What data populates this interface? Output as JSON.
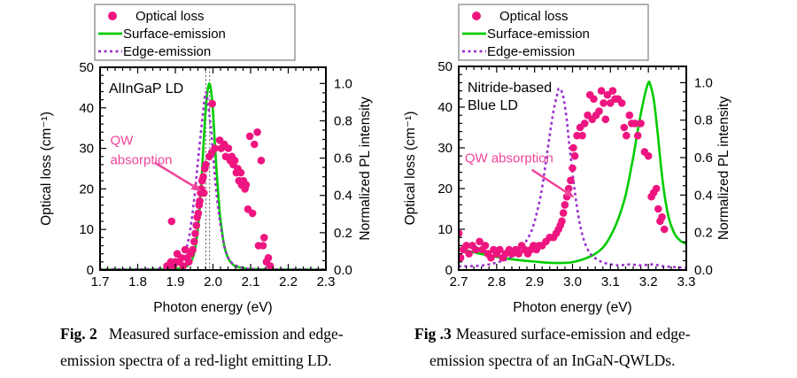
{
  "colors": {
    "optical_loss_pink": "#EE1580",
    "surface_emission_green": "#00CC00",
    "edge_emission_purple": "#9B30CC",
    "annotation_pink": "#F0459A",
    "axis_black": "#000000",
    "legend_border_gray": "#999999",
    "ref_line_gray": "#555555",
    "background": "#FFFFFF"
  },
  "legend_items": [
    {
      "label": "Optical loss",
      "marker": "dot"
    },
    {
      "label": "Surface-emission",
      "marker": "solid-line"
    },
    {
      "label": "Edge-emission",
      "marker": "dashed-line"
    }
  ],
  "chart_data": [
    {
      "type": "scatter+line",
      "inner_title": [
        "AlInGaP LD"
      ],
      "xlabel": "Photon energy (eV)",
      "ylabel_left": "Optical loss (cm⁻¹)",
      "ylabel_right": "Normalized PL intensity",
      "xlim": [
        1.7,
        2.3
      ],
      "xtick_values": [
        1.7,
        1.8,
        1.9,
        2.0,
        2.1,
        2.2,
        2.3
      ],
      "xtick_labels": [
        "1.7",
        "1.8",
        "1.9",
        "2.0",
        "2.1",
        "2.2",
        "2.3"
      ],
      "x_minor_step": 0.02,
      "ylim_left": [
        0,
        50
      ],
      "ytick_left_values": [
        0,
        10,
        20,
        30,
        40,
        50
      ],
      "ytick_left_labels": [
        "0",
        "10",
        "20",
        "30",
        "40",
        "50"
      ],
      "y_left_minor_step": 2,
      "ytick_right_values": [
        0,
        0.2,
        0.4,
        0.6,
        0.8,
        1.0
      ],
      "ytick_right_labels": [
        "0.0",
        "0.2",
        "0.4",
        "0.6",
        "0.8",
        "1.0"
      ],
      "y_right_minor_step": 0.05,
      "right_axis_top_value": 46,
      "ref_lines_x": [
        1.981,
        1.991
      ],
      "annotation": {
        "text_lines": [
          "QW",
          "absorption"
        ],
        "text_pos": [
          1.727,
          33.5
        ],
        "arrow_from": [
          1.845,
          26.5
        ],
        "arrow_to": [
          1.969,
          19.5
        ]
      },
      "series": {
        "optical_loss_scatter": [
          [
            1.878,
            1
          ],
          [
            1.888,
            2
          ],
          [
            1.89,
            12
          ],
          [
            1.895,
            1
          ],
          [
            1.9,
            2
          ],
          [
            1.905,
            4
          ],
          [
            1.91,
            2
          ],
          [
            1.916,
            3
          ],
          [
            1.921,
            1
          ],
          [
            1.926,
            5
          ],
          [
            1.931,
            3
          ],
          [
            1.936,
            2
          ],
          [
            1.941,
            4
          ],
          [
            1.946,
            5
          ],
          [
            1.95,
            7
          ],
          [
            1.953,
            9
          ],
          [
            1.956,
            11
          ],
          [
            1.958,
            13
          ],
          [
            1.961,
            14
          ],
          [
            1.963,
            16
          ],
          [
            1.965,
            17
          ],
          [
            1.967,
            19
          ],
          [
            1.969,
            20
          ],
          [
            1.971,
            22
          ],
          [
            1.974,
            23
          ],
          [
            1.976,
            19
          ],
          [
            1.978,
            25
          ],
          [
            1.981,
            26
          ],
          [
            1.998,
            41
          ],
          [
            1.99,
            28
          ],
          [
            1.997,
            29
          ],
          [
            2.005,
            30
          ],
          [
            2.018,
            32
          ],
          [
            2.022,
            30
          ],
          [
            2.03,
            31
          ],
          [
            2.034,
            28
          ],
          [
            2.041,
            30
          ],
          [
            2.046,
            27
          ],
          [
            2.05,
            28
          ],
          [
            2.054,
            26
          ],
          [
            2.058,
            27
          ],
          [
            2.062,
            24
          ],
          [
            2.066,
            25
          ],
          [
            2.069,
            22
          ],
          [
            2.074,
            24
          ],
          [
            2.076,
            21
          ],
          [
            2.081,
            22
          ],
          [
            2.085,
            20
          ],
          [
            2.088,
            21
          ],
          [
            2.093,
            15
          ],
          [
            2.098,
            33
          ],
          [
            2.105,
            14
          ],
          [
            2.11,
            31
          ],
          [
            2.118,
            34
          ],
          [
            2.121,
            6
          ],
          [
            2.128,
            27
          ],
          [
            2.133,
            6
          ],
          [
            2.136,
            8
          ],
          [
            2.142,
            2
          ],
          [
            2.147,
            3
          ],
          [
            2.152,
            1
          ]
        ],
        "surface_emission": [
          [
            1.7,
            0.002
          ],
          [
            1.8,
            0.002
          ],
          [
            1.85,
            0.003
          ],
          [
            1.9,
            0.006
          ],
          [
            1.92,
            0.012
          ],
          [
            1.93,
            0.02
          ],
          [
            1.94,
            0.04
          ],
          [
            1.95,
            0.09
          ],
          [
            1.96,
            0.22
          ],
          [
            1.965,
            0.34
          ],
          [
            1.97,
            0.5
          ],
          [
            1.975,
            0.68
          ],
          [
            1.98,
            0.84
          ],
          [
            1.985,
            0.95
          ],
          [
            1.99,
            1.0
          ],
          [
            1.995,
            0.96
          ],
          [
            2.0,
            0.85
          ],
          [
            2.005,
            0.68
          ],
          [
            2.01,
            0.52
          ],
          [
            2.015,
            0.38
          ],
          [
            2.02,
            0.27
          ],
          [
            2.03,
            0.13
          ],
          [
            2.04,
            0.065
          ],
          [
            2.05,
            0.035
          ],
          [
            2.06,
            0.02
          ],
          [
            2.08,
            0.01
          ],
          [
            2.1,
            0.005
          ],
          [
            2.15,
            0.003
          ],
          [
            2.2,
            0.002
          ],
          [
            2.3,
            0.002
          ]
        ],
        "edge_emission": [
          [
            1.7,
            0.003
          ],
          [
            1.8,
            0.004
          ],
          [
            1.85,
            0.006
          ],
          [
            1.88,
            0.012
          ],
          [
            1.9,
            0.025
          ],
          [
            1.91,
            0.04
          ],
          [
            1.92,
            0.07
          ],
          [
            1.93,
            0.12
          ],
          [
            1.94,
            0.22
          ],
          [
            1.95,
            0.38
          ],
          [
            1.96,
            0.58
          ],
          [
            1.97,
            0.78
          ],
          [
            1.975,
            0.87
          ],
          [
            1.98,
            0.95
          ],
          [
            1.985,
            0.92
          ],
          [
            1.99,
            0.84
          ],
          [
            1.995,
            0.75
          ],
          [
            2.0,
            0.62
          ],
          [
            2.005,
            0.5
          ],
          [
            2.01,
            0.4
          ],
          [
            2.015,
            0.31
          ],
          [
            2.02,
            0.24
          ],
          [
            2.03,
            0.13
          ],
          [
            2.04,
            0.068
          ],
          [
            2.05,
            0.038
          ],
          [
            2.06,
            0.024
          ],
          [
            2.08,
            0.012
          ],
          [
            2.1,
            0.006
          ],
          [
            2.15,
            0.004
          ],
          [
            2.2,
            0.003
          ],
          [
            2.3,
            0.003
          ]
        ]
      }
    },
    {
      "type": "scatter+line",
      "inner_title": [
        "Nitride-based",
        "Blue LD"
      ],
      "xlabel": "Photon energy (eV)",
      "ylabel_left": "Optical loss (cm⁻¹)",
      "ylabel_right": "Normalized PL intensity",
      "xlim": [
        2.7,
        3.3
      ],
      "xtick_values": [
        2.7,
        2.8,
        2.9,
        3.0,
        3.1,
        3.2,
        3.3
      ],
      "xtick_labels": [
        "2.7",
        "2.8",
        "2.9",
        "3.0",
        "3.1",
        "3.2",
        "3.3"
      ],
      "x_minor_step": 0.02,
      "ylim_left": [
        0,
        50
      ],
      "ytick_left_values": [
        0,
        10,
        20,
        30,
        40,
        50
      ],
      "ytick_left_labels": [
        "0",
        "10",
        "20",
        "30",
        "40",
        "50"
      ],
      "y_left_minor_step": 2,
      "ytick_right_values": [
        0,
        0.2,
        0.4,
        0.6,
        0.8,
        1.0
      ],
      "ytick_right_labels": [
        "0.0",
        "0.2",
        "0.4",
        "0.6",
        "0.8",
        "1.0"
      ],
      "y_right_minor_step": 0.05,
      "right_axis_top_value": 46,
      "ref_lines_x": [],
      "annotation": {
        "text_lines": [
          "QW absorption"
        ],
        "text_pos": [
          2.716,
          29
        ],
        "arrow_from": [
          2.893,
          24.6
        ],
        "arrow_to": [
          3.005,
          17.8
        ]
      },
      "series": {
        "optical_loss_scatter": [
          [
            2.7,
            9
          ],
          [
            2.705,
            3
          ],
          [
            2.712,
            5
          ],
          [
            2.72,
            6
          ],
          [
            2.727,
            4
          ],
          [
            2.736,
            6
          ],
          [
            2.745,
            5
          ],
          [
            2.755,
            7
          ],
          [
            2.762,
            5
          ],
          [
            2.77,
            6
          ],
          [
            2.777,
            4
          ],
          [
            2.785,
            3
          ],
          [
            2.792,
            5
          ],
          [
            2.8,
            4
          ],
          [
            2.808,
            5
          ],
          [
            2.816,
            3
          ],
          [
            2.824,
            4
          ],
          [
            2.833,
            5
          ],
          [
            2.841,
            4
          ],
          [
            2.85,
            5
          ],
          [
            2.858,
            4
          ],
          [
            2.866,
            6
          ],
          [
            2.874,
            5
          ],
          [
            2.882,
            4
          ],
          [
            2.89,
            5
          ],
          [
            2.897,
            6
          ],
          [
            2.905,
            5
          ],
          [
            2.912,
            6
          ],
          [
            2.92,
            6
          ],
          [
            2.93,
            7
          ],
          [
            2.94,
            8
          ],
          [
            2.95,
            8
          ],
          [
            2.957,
            9
          ],
          [
            2.963,
            10
          ],
          [
            2.968,
            11
          ],
          [
            2.972,
            12
          ],
          [
            2.976,
            14
          ],
          [
            2.98,
            16
          ],
          [
            2.985,
            18
          ],
          [
            2.99,
            20
          ],
          [
            2.995,
            22
          ],
          [
            3.0,
            25
          ],
          [
            3.002,
            30
          ],
          [
            3.006,
            28
          ],
          [
            3.012,
            33
          ],
          [
            3.02,
            35
          ],
          [
            3.026,
            33
          ],
          [
            3.032,
            36
          ],
          [
            3.04,
            38
          ],
          [
            3.046,
            43
          ],
          [
            3.052,
            37
          ],
          [
            3.056,
            42
          ],
          [
            3.062,
            38
          ],
          [
            3.07,
            39
          ],
          [
            3.076,
            44
          ],
          [
            3.082,
            41
          ],
          [
            3.087,
            37
          ],
          [
            3.092,
            43
          ],
          [
            3.1,
            41
          ],
          [
            3.106,
            44
          ],
          [
            3.112,
            42
          ],
          [
            3.12,
            42
          ],
          [
            3.13,
            41
          ],
          [
            3.136,
            35
          ],
          [
            3.142,
            33
          ],
          [
            3.15,
            38
          ],
          [
            3.156,
            36
          ],
          [
            3.165,
            36
          ],
          [
            3.172,
            33
          ],
          [
            3.18,
            36
          ],
          [
            3.19,
            29
          ],
          [
            3.2,
            28
          ],
          [
            3.208,
            18
          ],
          [
            3.214,
            19
          ],
          [
            3.221,
            20
          ],
          [
            3.226,
            15
          ],
          [
            3.231,
            12
          ],
          [
            3.236,
            13
          ],
          [
            3.242,
            10
          ]
        ],
        "surface_emission": [
          [
            2.7,
            0.115
          ],
          [
            2.75,
            0.09
          ],
          [
            2.8,
            0.07
          ],
          [
            2.85,
            0.055
          ],
          [
            2.9,
            0.045
          ],
          [
            2.95,
            0.038
          ],
          [
            3.0,
            0.042
          ],
          [
            3.05,
            0.075
          ],
          [
            3.08,
            0.12
          ],
          [
            3.1,
            0.18
          ],
          [
            3.12,
            0.27
          ],
          [
            3.14,
            0.4
          ],
          [
            3.16,
            0.6
          ],
          [
            3.175,
            0.78
          ],
          [
            3.19,
            0.93
          ],
          [
            3.2,
            1.0
          ],
          [
            3.205,
            0.99
          ],
          [
            3.215,
            0.9
          ],
          [
            3.225,
            0.72
          ],
          [
            3.235,
            0.52
          ],
          [
            3.245,
            0.37
          ],
          [
            3.255,
            0.27
          ],
          [
            3.27,
            0.19
          ],
          [
            3.285,
            0.155
          ],
          [
            3.3,
            0.14
          ]
        ],
        "edge_emission": [
          [
            2.7,
            0.02
          ],
          [
            2.75,
            0.022
          ],
          [
            2.78,
            0.03
          ],
          [
            2.8,
            0.04
          ],
          [
            2.83,
            0.06
          ],
          [
            2.85,
            0.09
          ],
          [
            2.87,
            0.13
          ],
          [
            2.89,
            0.2
          ],
          [
            2.9,
            0.26
          ],
          [
            2.91,
            0.34
          ],
          [
            2.92,
            0.44
          ],
          [
            2.93,
            0.58
          ],
          [
            2.94,
            0.72
          ],
          [
            2.95,
            0.85
          ],
          [
            2.96,
            0.94
          ],
          [
            2.965,
            0.97
          ],
          [
            2.975,
            0.93
          ],
          [
            2.985,
            0.8
          ],
          [
            2.99,
            0.7
          ],
          [
            3.0,
            0.52
          ],
          [
            3.01,
            0.36
          ],
          [
            3.02,
            0.24
          ],
          [
            3.03,
            0.16
          ],
          [
            3.04,
            0.11
          ],
          [
            3.05,
            0.08
          ],
          [
            3.07,
            0.05
          ],
          [
            3.09,
            0.035
          ],
          [
            3.12,
            0.025
          ],
          [
            3.15,
            0.03
          ],
          [
            3.18,
            0.025
          ],
          [
            3.21,
            0.03
          ],
          [
            3.24,
            0.02
          ],
          [
            3.27,
            0.015
          ],
          [
            3.3,
            0.012
          ]
        ]
      }
    }
  ],
  "captions": [
    {
      "tag": "Fig. 2",
      "line1": "Measured surface-emission and edge-",
      "line2": "emission spectra of a red-light emitting LD."
    },
    {
      "tag": "Fig .3",
      "line1": "Measured surface-emission and edge-",
      "line2": "emission spectra of an InGaN-QWLDs."
    }
  ]
}
